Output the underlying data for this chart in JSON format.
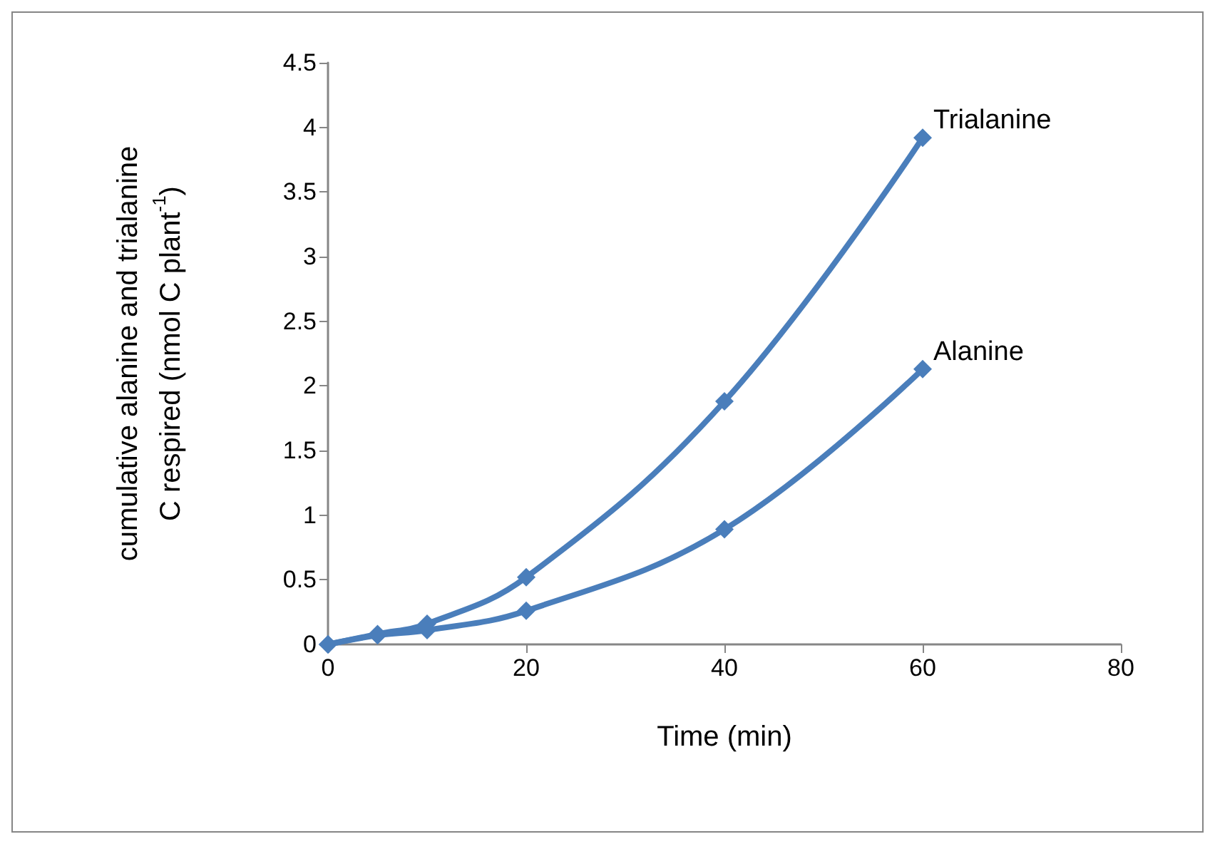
{
  "chart_data": {
    "type": "line",
    "xlabel": "Time (min)",
    "ylabel": "cumulative alanine and trialanine C respired (nmol C plant$^{-1}$)",
    "x": [
      0,
      5,
      10,
      20,
      40,
      60
    ],
    "series": [
      {
        "name": "Trialanine",
        "color": "#4a7ebb",
        "values": [
          0,
          0.08,
          0.16,
          0.52,
          1.88,
          3.92
        ]
      },
      {
        "name": "Alanine",
        "color": "#4a7ebb",
        "values": [
          0,
          0.07,
          0.11,
          0.26,
          0.89,
          2.13
        ]
      }
    ],
    "xlim": [
      0,
      80
    ],
    "xticks": [
      0,
      20,
      40,
      60,
      80
    ],
    "ylim": [
      0,
      4.5
    ],
    "yticks": [
      0,
      0.5,
      1,
      1.5,
      2,
      2.5,
      3,
      3.5,
      4,
      4.5
    ],
    "grid": false,
    "legend": false,
    "marker": "diamond",
    "line_style": "solid"
  }
}
